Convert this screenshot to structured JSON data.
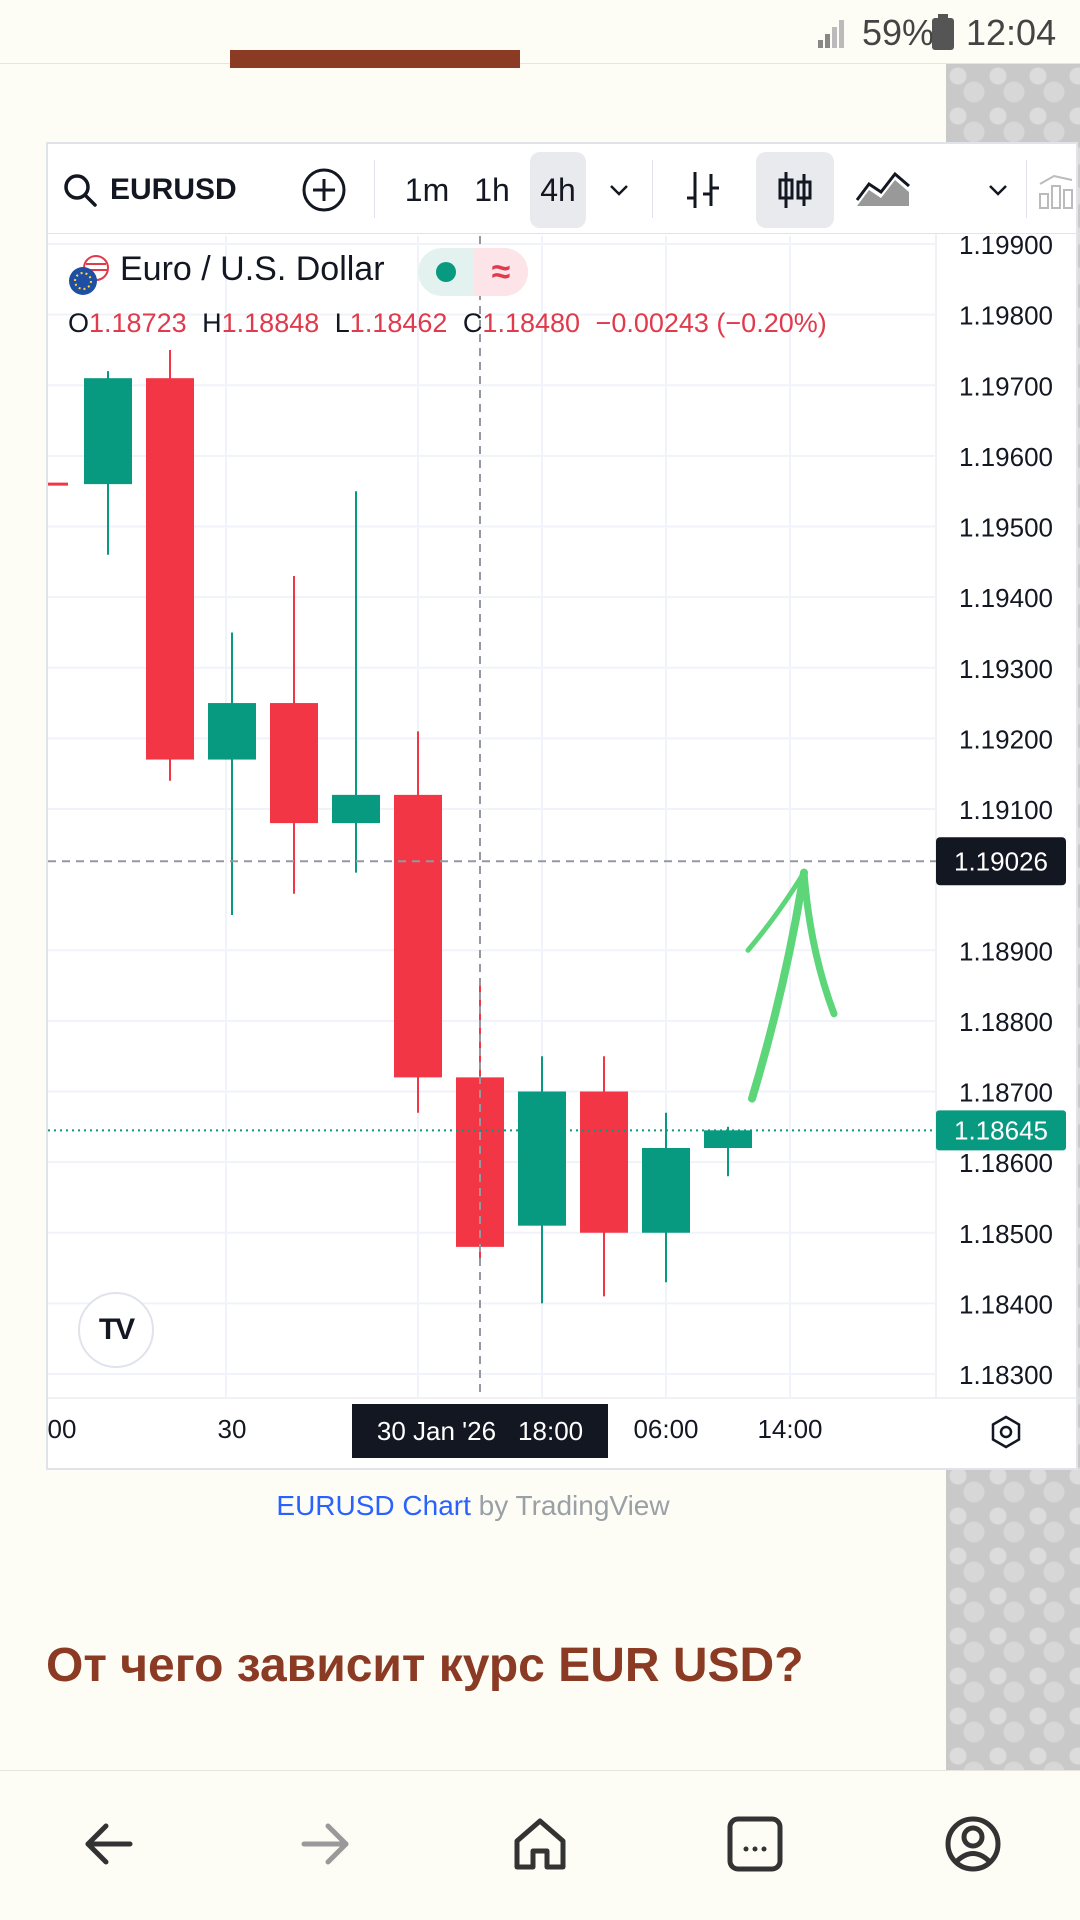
{
  "status_bar": {
    "battery": "59%",
    "time": "12:04"
  },
  "toolbar": {
    "symbol": "EURUSD",
    "intervals": [
      "1m",
      "1h",
      "4h"
    ],
    "selected_interval": "4h"
  },
  "legend": {
    "title": "Euro / U.S. Dollar",
    "o_label": "O",
    "o_value": "1.18723",
    "h_label": "H",
    "h_value": "1.18848",
    "l_label": "L",
    "l_value": "1.18462",
    "c_label": "C",
    "c_value": "1.18480",
    "change": "−0.00243 (−0.20%)"
  },
  "chart_data": {
    "type": "candlestick",
    "symbol": "EURUSD",
    "interval": "4h",
    "ylim": [
      1.1825,
      1.1995
    ],
    "y_ticks": [
      "1.19900",
      "1.19800",
      "1.19700",
      "1.19600",
      "1.19500",
      "1.19400",
      "1.19300",
      "1.19200",
      "1.19100",
      "1.18900",
      "1.18800",
      "1.18700",
      "1.18600",
      "1.18500",
      "1.18400",
      "1.18300"
    ],
    "x_ticks": [
      "00",
      "30",
      "06:00",
      "14:00"
    ],
    "crosshair": {
      "price": "1.19026",
      "time_date": "30 Jan '26",
      "time_hour": "18:00"
    },
    "last_price": "1.18645",
    "candles": [
      {
        "open": 1.1956,
        "high": 1.1972,
        "low": 1.1946,
        "close": 1.1971
      },
      {
        "open": 1.1971,
        "high": 1.1975,
        "low": 1.1914,
        "close": 1.1917
      },
      {
        "open": 1.1917,
        "high": 1.1935,
        "low": 1.1895,
        "close": 1.1925
      },
      {
        "open": 1.1925,
        "high": 1.1943,
        "low": 1.1898,
        "close": 1.1908
      },
      {
        "open": 1.1908,
        "high": 1.1955,
        "low": 1.1901,
        "close": 1.1912
      },
      {
        "open": 1.1912,
        "high": 1.1921,
        "low": 1.1867,
        "close": 1.1872
      },
      {
        "open": 1.1872,
        "high": 1.1885,
        "low": 1.1846,
        "close": 1.1848
      },
      {
        "open": 1.1851,
        "high": 1.1875,
        "low": 1.184,
        "close": 1.187
      },
      {
        "open": 1.187,
        "high": 1.1875,
        "low": 1.1841,
        "close": 1.185
      },
      {
        "open": 1.185,
        "high": 1.1867,
        "low": 1.1843,
        "close": 1.1862
      },
      {
        "open": 1.1862,
        "high": 1.1865,
        "low": 1.1858,
        "close": 1.18645
      }
    ],
    "colors": {
      "up": "#089981",
      "down": "#f23645",
      "arrow": "#5dd67a"
    }
  },
  "caption": {
    "link": "EURUSD Chart",
    "rest": " by TradingView"
  },
  "heading": "От чего зависит курс EUR USD?"
}
